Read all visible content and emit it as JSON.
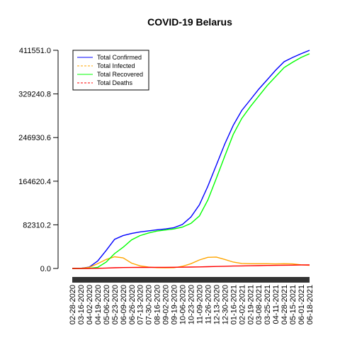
{
  "chart_data": {
    "type": "line",
    "title": "COVID-19 Belarus",
    "xlabel": "",
    "ylabel": "",
    "ylim": [
      0,
      411551.0
    ],
    "yticks": [
      "0.0",
      "82310.2",
      "164620.4",
      "246930.6",
      "329240.8",
      "411551.0"
    ],
    "x_tick_labels": [
      "02-28-2020",
      "03-16-2020",
      "04-02-2020",
      "04-19-2020",
      "05-06-2020",
      "05-23-2020",
      "06-09-2020",
      "06-26-2020",
      "07-13-2020",
      "07-30-2020",
      "08-16-2020",
      "09-02-2020",
      "09-19-2020",
      "10-06-2020",
      "10-23-2020",
      "11-09-2020",
      "11-26-2020",
      "12-13-2020",
      "12-30-2020",
      "01-16-2021",
      "02-02-2021",
      "02-19-2021",
      "03-08-2021",
      "03-25-2021",
      "04-11-2021",
      "04-28-2021",
      "05-15-2021",
      "06-01-2021",
      "06-18-2021"
    ],
    "legend_position": "top-left",
    "series": [
      {
        "name": "Total Confirmed",
        "color": "#0000ff",
        "dash": "solid",
        "values": [
          0,
          300,
          2500,
          14000,
          34000,
          55000,
          62000,
          66000,
          69000,
          71000,
          73000,
          74500,
          77000,
          83000,
          97000,
          120000,
          155000,
          195000,
          235000,
          270000,
          298000,
          318000,
          338000,
          356000,
          374000,
          390000,
          398000,
          405000,
          411551
        ]
      },
      {
        "name": "Total Infected",
        "color": "#ffa500",
        "dash": "dashed",
        "values": [
          0,
          300,
          2200,
          9000,
          17000,
          22000,
          20000,
          10000,
          5000,
          2500,
          1500,
          1200,
          1500,
          4000,
          9000,
          16000,
          21000,
          21500,
          17000,
          12000,
          9500,
          9000,
          9000,
          9000,
          8500,
          9000,
          8500,
          7000,
          6000
        ]
      },
      {
        "name": "Total Recovered",
        "color": "#00ff00",
        "dash": "solid",
        "values": [
          0,
          0,
          300,
          2000,
          12000,
          28000,
          40000,
          54000,
          62000,
          67000,
          70500,
          72500,
          74500,
          78000,
          85000,
          99000,
          129000,
          170000,
          212000,
          253000,
          283000,
          305000,
          325000,
          345000,
          362000,
          379000,
          389000,
          398000,
          405000
        ]
      },
      {
        "name": "Total Deaths",
        "color": "#ff0000",
        "dash": "dashed",
        "values": [
          0,
          0,
          50,
          300,
          800,
          1300,
          1700,
          1900,
          2000,
          2050,
          2100,
          2150,
          2250,
          2400,
          2700,
          3000,
          3300,
          3700,
          4100,
          4500,
          4800,
          5100,
          5400,
          5700,
          5900,
          6100,
          6300,
          6500,
          6700
        ]
      }
    ]
  }
}
